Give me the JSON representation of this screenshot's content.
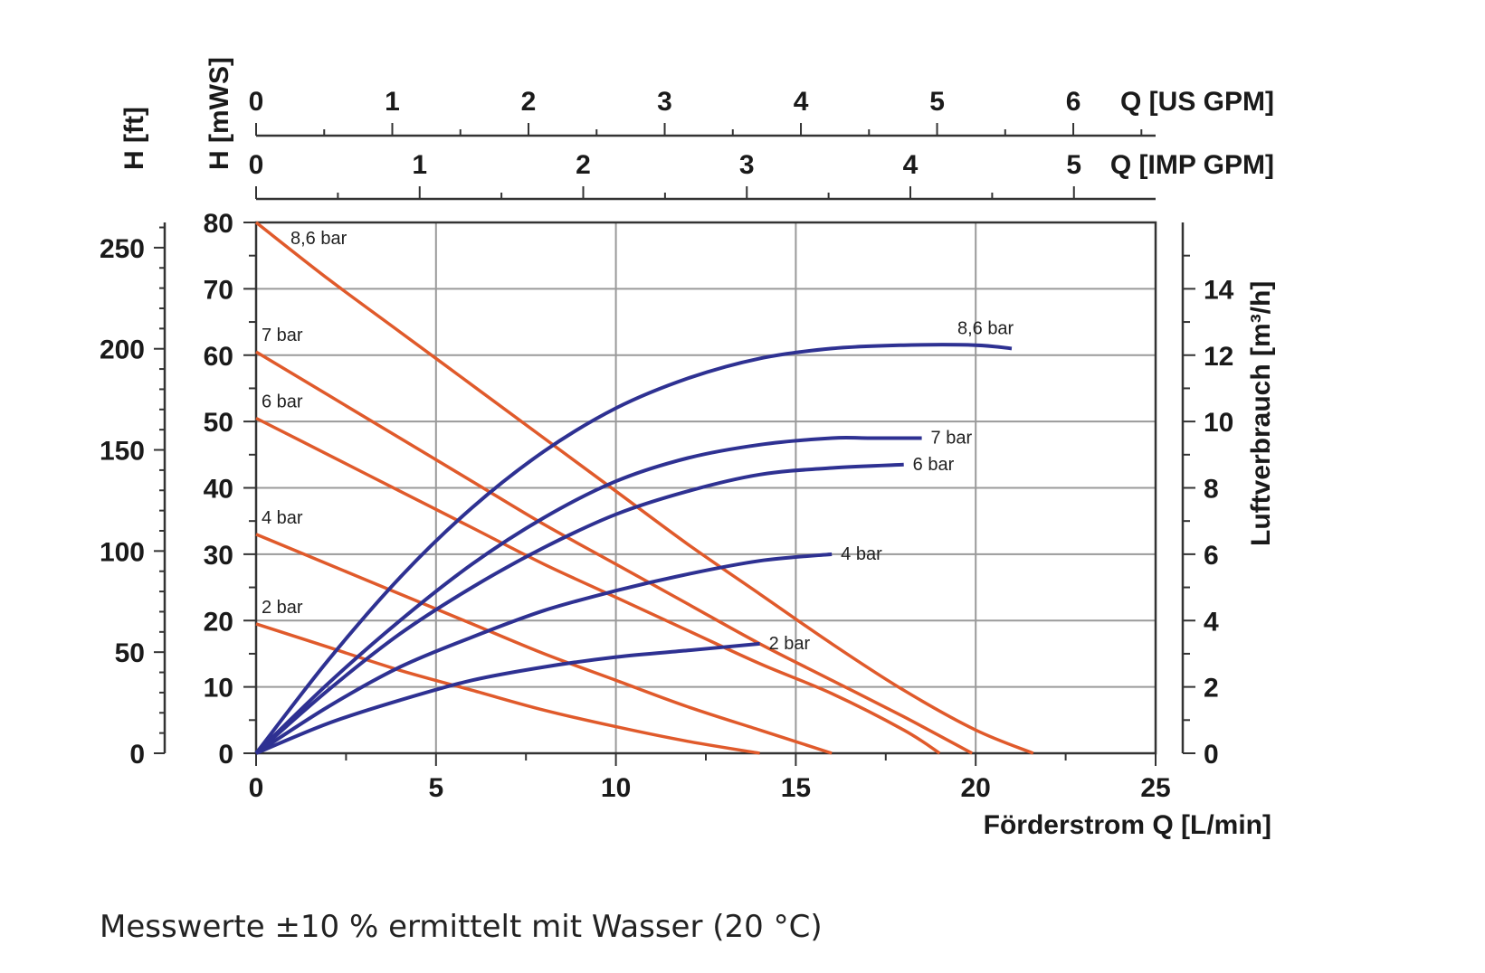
{
  "caption": "Messwerte ±10 % ermittelt mit Wasser (20 °C)",
  "colors": {
    "head": "#e05a2b",
    "air": "#2e3192",
    "grid": "#9a9a9a",
    "axis": "#333333"
  },
  "chart_data": {
    "type": "line",
    "xlabel": "Förderstrom Q [L/min]",
    "xlim": [
      0,
      25
    ],
    "xticks": [
      0,
      5,
      10,
      15,
      20,
      25
    ],
    "ylabel_left": "H [mWS]",
    "ylim_left": [
      0,
      80
    ],
    "yticks_left": [
      0,
      10,
      20,
      30,
      40,
      50,
      60,
      70,
      80
    ],
    "ylabel_left_ft": "H [ft]",
    "yticks_left_ft": [
      0,
      50,
      100,
      150,
      200,
      250
    ],
    "ylabel_right": "Luftverbrauch [m³/h]",
    "ylim_right": [
      0,
      16
    ],
    "yticks_right": [
      0,
      2,
      4,
      6,
      8,
      10,
      12,
      14
    ],
    "top_axis_us": {
      "label": "Q [US GPM]",
      "ticks": [
        0,
        1,
        2,
        3,
        4,
        5,
        6
      ]
    },
    "top_axis_imp": {
      "label": "Q [IMP GPM]",
      "ticks": [
        0,
        1,
        2,
        3,
        4,
        5
      ]
    },
    "grid": true,
    "head_series": [
      {
        "name": "8,6 bar",
        "x": [
          0,
          2,
          4,
          6,
          8,
          10,
          12,
          14,
          16,
          18,
          20,
          21.6
        ],
        "y": [
          80,
          71.5,
          63.5,
          55.5,
          47.5,
          39.5,
          31.5,
          24,
          16.5,
          9.5,
          3.5,
          0
        ]
      },
      {
        "name": "7 bar",
        "x": [
          0,
          2,
          4,
          6,
          8,
          10,
          12,
          14,
          16,
          18,
          19.9
        ],
        "y": [
          60.5,
          54,
          47.5,
          41,
          34.5,
          28.5,
          22.5,
          16.5,
          11,
          5.5,
          0
        ]
      },
      {
        "name": "6 bar",
        "x": [
          0,
          2,
          4,
          6,
          8,
          10,
          12,
          14,
          16,
          18,
          19
        ],
        "y": [
          50.5,
          45,
          39.5,
          34,
          28.5,
          23.5,
          18.5,
          13.5,
          9,
          3.5,
          0
        ]
      },
      {
        "name": "4 bar",
        "x": [
          0,
          2,
          4,
          6,
          8,
          10,
          12,
          14,
          16
        ],
        "y": [
          33,
          28.5,
          24,
          19.5,
          15,
          11,
          7,
          3.5,
          0
        ]
      },
      {
        "name": "2 bar",
        "x": [
          0,
          2,
          4,
          6,
          8,
          10,
          12,
          14
        ],
        "y": [
          19.5,
          16,
          12.5,
          9.5,
          6.5,
          4,
          1.8,
          0
        ]
      }
    ],
    "air_series": [
      {
        "name": "8,6 bar",
        "x": [
          0,
          2,
          4,
          6,
          8,
          10,
          12,
          14,
          16,
          18,
          20,
          21
        ],
        "y": [
          0,
          2.8,
          5.3,
          7.4,
          9.1,
          10.4,
          11.3,
          11.9,
          12.2,
          12.3,
          12.3,
          12.2
        ]
      },
      {
        "name": "7 bar",
        "x": [
          0,
          2,
          4,
          6,
          8,
          10,
          12,
          14,
          16,
          17,
          18.5
        ],
        "y": [
          0,
          2.1,
          4,
          5.7,
          7.1,
          8.2,
          8.9,
          9.3,
          9.5,
          9.5,
          9.5
        ]
      },
      {
        "name": "6 bar",
        "x": [
          0,
          2,
          4,
          6,
          8,
          10,
          12,
          14,
          16,
          18
        ],
        "y": [
          0,
          1.9,
          3.6,
          5,
          6.2,
          7.2,
          7.9,
          8.4,
          8.6,
          8.7
        ]
      },
      {
        "name": "4 bar",
        "x": [
          0,
          2,
          4,
          6,
          8,
          10,
          12,
          14,
          16
        ],
        "y": [
          0,
          1.4,
          2.6,
          3.5,
          4.3,
          4.9,
          5.4,
          5.8,
          6
        ]
      },
      {
        "name": "2 bar",
        "x": [
          0,
          2,
          4,
          6,
          8,
          10,
          12,
          14
        ],
        "y": [
          0,
          0.9,
          1.6,
          2.2,
          2.6,
          2.9,
          3.1,
          3.3
        ]
      }
    ]
  }
}
